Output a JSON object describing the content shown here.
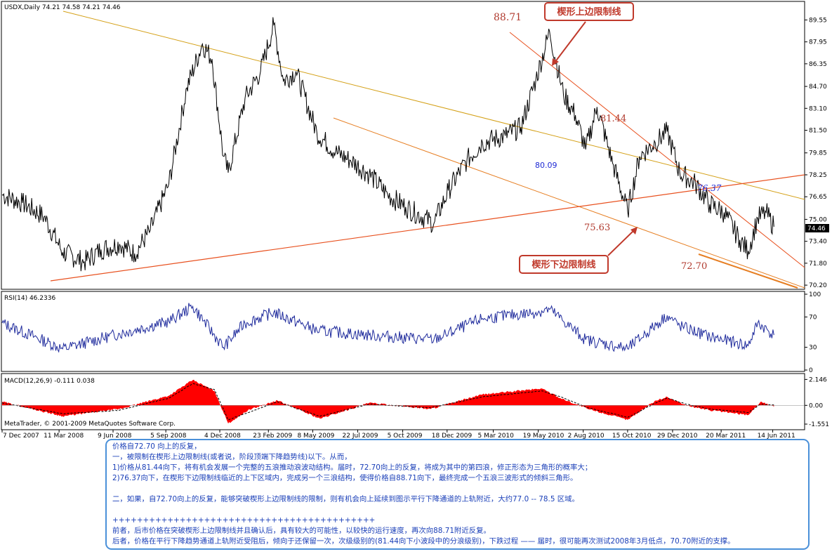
{
  "price_panel": {
    "header": "USDX,Daily  74.21 74.58 74.21 74.46",
    "last_price_tag": "74.46"
  },
  "rsi_panel": {
    "header": "RSI(14) 46.2336"
  },
  "macd_panel": {
    "header": "MACD(12,26,9) -0.111 0.038"
  },
  "copyright": "MetaTrader, © 2001-2009 MetaQuotes Software Corp.",
  "callouts": {
    "upper": "楔形上边限制线",
    "lower": "楔形下边限制线"
  },
  "colors": {
    "price": "#000000",
    "rsi": "#1e2a9c",
    "macd_hist": "#ff0000",
    "upper_line": "#e8501e",
    "lower_line": "#e67e22",
    "downtrend": "#d4a017",
    "callout_border": "#c0392b",
    "note_border": "#4a90d9",
    "note_text": "#1a3fb8"
  },
  "chart_data": [
    {
      "type": "line",
      "name": "USDX Daily",
      "ylim": [
        70.0,
        90.8
      ],
      "y_ticks": [
        "89.55",
        "87.95",
        "86.35",
        "84.70",
        "83.10",
        "81.50",
        "79.85",
        "78.25",
        "76.65",
        "75.00",
        "73.40",
        "71.80",
        "70.20"
      ],
      "x_ticks": [
        "7 Dec 2007",
        "11 Mar 2008",
        "9 Jun 2008",
        "5 Sep 2008",
        "4 Dec 2008",
        "23 Feb 2009",
        "8 May 2009",
        "22 Jul 2009",
        "5 Oct 2009",
        "18 Dec 2009",
        "5 Mar 2010",
        "19 May 2010",
        "2 Aug 2010",
        "15 Oct 2010",
        "29 Dec 2010",
        "20 Mar 2011",
        "14 Jun 2011"
      ],
      "x": [
        "2007-12-07",
        "2008-01-10",
        "2008-02-15",
        "2008-03-17",
        "2008-04-22",
        "2008-05-20",
        "2008-06-20",
        "2008-07-15",
        "2008-08-10",
        "2008-09-10",
        "2008-10-10",
        "2008-11-05",
        "2008-11-21",
        "2008-12-10",
        "2008-12-18",
        "2009-01-15",
        "2009-02-10",
        "2009-03-04",
        "2009-03-20",
        "2009-04-10",
        "2009-05-15",
        "2009-06-15",
        "2009-07-10",
        "2009-08-10",
        "2009-09-10",
        "2009-10-10",
        "2009-11-26",
        "2009-12-20",
        "2010-01-20",
        "2010-02-15",
        "2010-03-25",
        "2010-04-20",
        "2010-05-15",
        "2010-06-07",
        "2010-06-30",
        "2010-07-20",
        "2010-08-06",
        "2010-08-25",
        "2010-09-20",
        "2010-10-15",
        "2010-11-04",
        "2010-11-30",
        "2010-12-20",
        "2011-01-10",
        "2011-02-05",
        "2011-03-01",
        "2011-03-25",
        "2011-04-20",
        "2011-05-04",
        "2011-05-20",
        "2011-06-03",
        "2011-06-16"
      ],
      "y": [
        76.8,
        76.2,
        75.2,
        72.6,
        71.9,
        72.8,
        73.2,
        72.5,
        74.2,
        77.6,
        84.6,
        87.8,
        86.7,
        79.6,
        78.4,
        83.8,
        85.8,
        89.2,
        85.1,
        85.8,
        81.3,
        79.9,
        79.3,
        78.3,
        76.8,
        75.9,
        74.7,
        77.1,
        79.3,
        80.6,
        81.1,
        81.7,
        85.2,
        88.7,
        84.1,
        82.6,
        80.1,
        83.2,
        79.1,
        75.6,
        79.6,
        80.6,
        81.4,
        78.4,
        77.6,
        76.1,
        75.5,
        73.5,
        72.7,
        75.1,
        75.5,
        74.46
      ],
      "annotations": [
        "88.71",
        "81.44",
        "80.09",
        "76.37",
        "75.63",
        "72.70"
      ]
    },
    {
      "type": "line",
      "name": "RSI(14)",
      "ylim": [
        0,
        100
      ],
      "y_ticks": [
        "100",
        "70",
        "30",
        "0"
      ],
      "x": [
        "2007-12-07",
        "2008-03-17",
        "2008-06-20",
        "2008-09-10",
        "2008-10-20",
        "2008-12-10",
        "2009-01-15",
        "2009-03-04",
        "2009-05-15",
        "2009-08-10",
        "2009-11-26",
        "2010-02-15",
        "2010-05-15",
        "2010-06-07",
        "2010-08-06",
        "2010-10-15",
        "2010-12-20",
        "2011-01-10",
        "2011-03-01",
        "2011-05-04",
        "2011-05-20",
        "2011-06-16"
      ],
      "y": [
        62,
        28,
        48,
        64,
        84,
        30,
        62,
        76,
        52,
        46,
        40,
        68,
        76,
        80,
        40,
        28,
        72,
        58,
        44,
        32,
        62,
        46.2336
      ]
    },
    {
      "type": "bar",
      "name": "MACD(12,26,9)",
      "ylim": [
        -1.9,
        2.4
      ],
      "y_ticks": [
        "2.146",
        "0.00",
        "-1.551"
      ],
      "x": [
        "2007-12-07",
        "2008-03-17",
        "2008-06-20",
        "2008-09-10",
        "2008-10-20",
        "2008-11-25",
        "2008-12-18",
        "2009-01-20",
        "2009-03-10",
        "2009-05-20",
        "2009-08-10",
        "2009-11-20",
        "2010-02-15",
        "2010-05-25",
        "2010-06-25",
        "2010-08-10",
        "2010-10-15",
        "2010-12-01",
        "2010-12-20",
        "2011-01-20",
        "2011-03-01",
        "2011-05-04",
        "2011-05-25",
        "2011-06-16"
      ],
      "values": [
        0.3,
        -0.9,
        -0.3,
        0.8,
        2.1,
        1.2,
        -1.5,
        -0.4,
        0.4,
        -1.1,
        0.2,
        -0.3,
        0.9,
        1.4,
        0.6,
        -0.3,
        -1.2,
        0.4,
        0.7,
        0.0,
        -0.4,
        -0.8,
        0.3,
        -0.111
      ],
      "signal": [
        0.2,
        -0.7,
        -0.4,
        0.6,
        1.8,
        1.3,
        -1.2,
        -0.6,
        0.3,
        -0.9,
        0.1,
        -0.2,
        0.7,
        1.2,
        0.7,
        -0.2,
        -1.0,
        0.2,
        0.6,
        0.1,
        -0.3,
        -0.6,
        0.1,
        0.038
      ]
    }
  ],
  "commentary": [
    "价格自72.70 向上的反复，",
    "一，被限制在楔形上边限制线(或者说，阶段顶端下降趋势线)以下。从而，",
    "1)价格从81.44向下，将有机会发展一个完整的五浪推动浪波动结构。届时，72.70向上的反复，将成为其中的第四浪，修正形态为三角形的概率大；",
    "2)76.37向下，在楔形下边限制线临近的上下区域内，完成另一个三浪结构，使得价格自88.71向下，最终完成一个五浪三波形式的倾斜三角形。",
    "",
    "二，如果，自72.70向上的反复，能够突破楔形上边限制线的限制，则有机会向上延续到图示平行下降通道的上轨附近，大约77.0 -- 78.5 区域。",
    "",
    "+++++++++++++++++++++++++++++++++++++++++++",
    "前者，后市价格在突破楔形上边限制线并且确认后，具有较大的可能性，以较快的运行速度，再次向88.71附近反复。",
    "后者，价格在平行下降趋势通道上轨附近受阻后，倾向于还保留一次，次级级别的(81.44向下小波段中的分浪级别)，下跌过程 —— 届时，很可能再次测试2008年3月低点，70.70附近的支撑。"
  ]
}
